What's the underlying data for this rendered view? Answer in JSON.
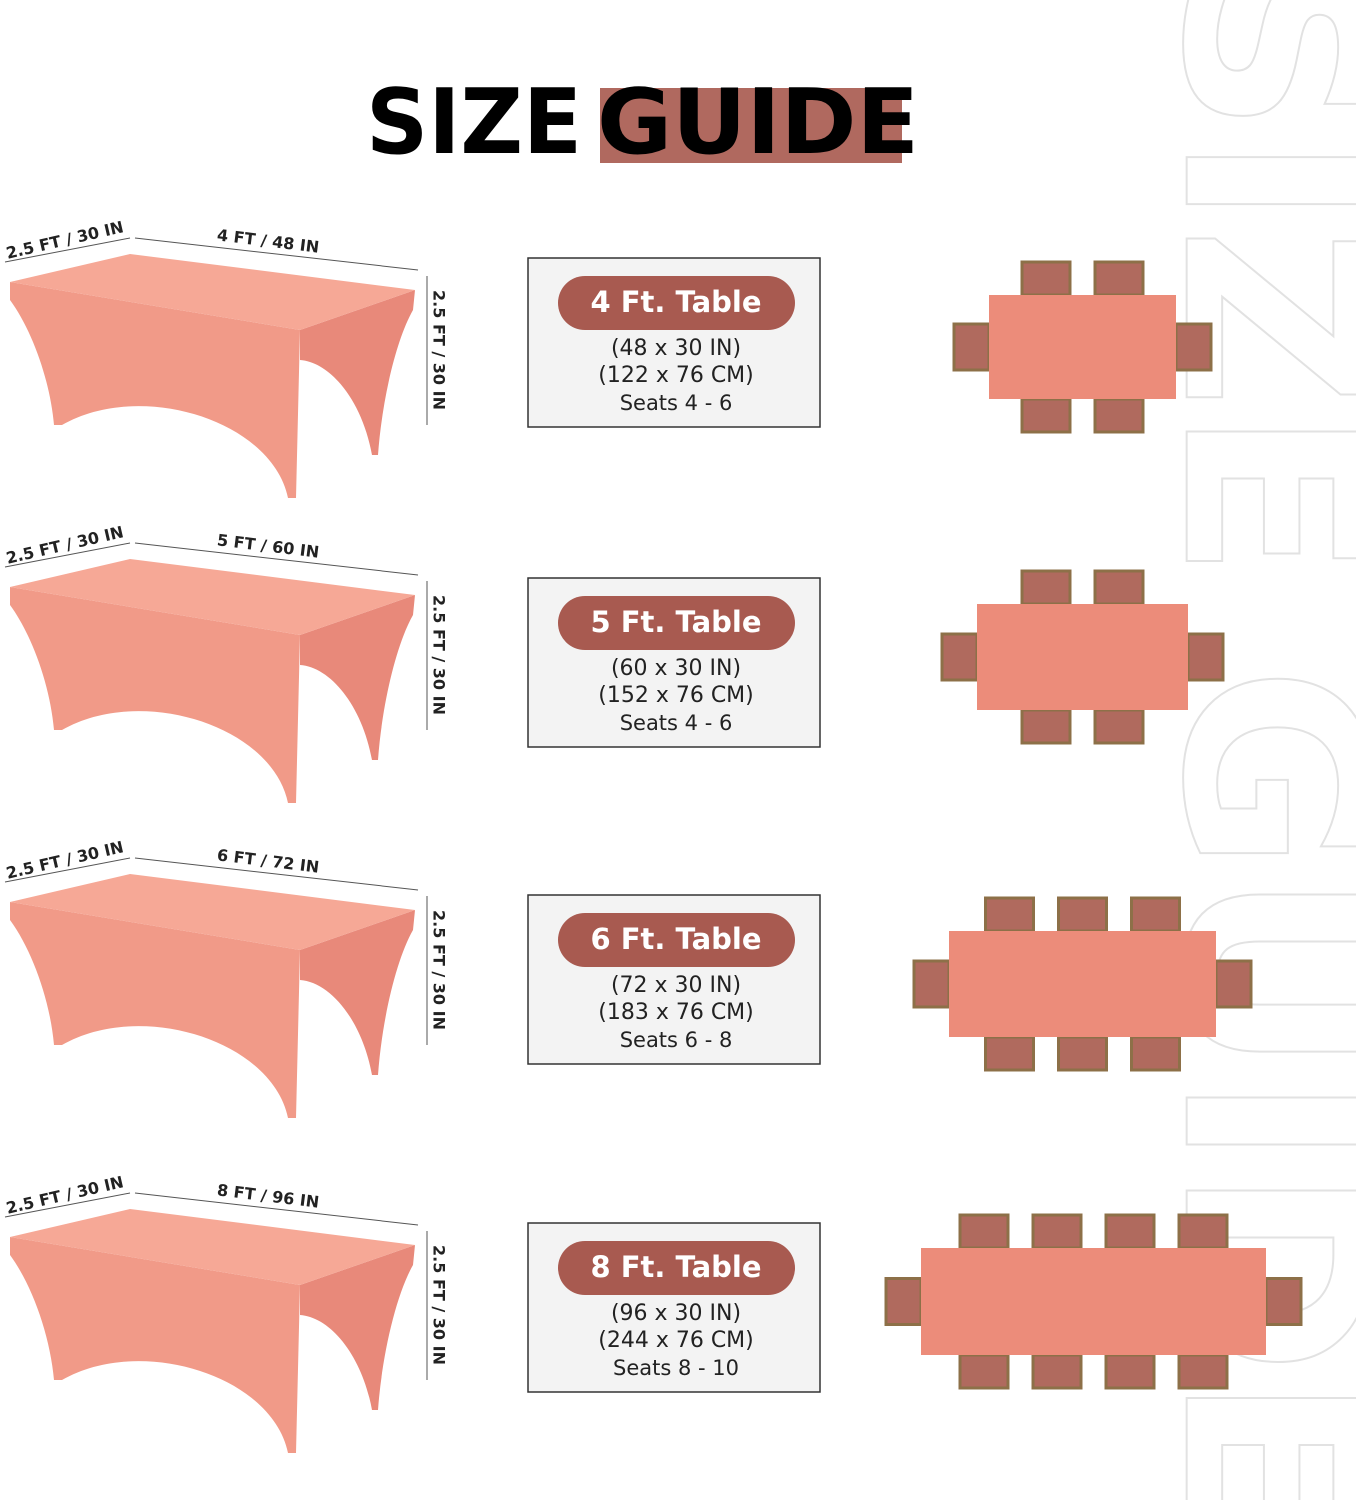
{
  "title": {
    "word1": "SIZE",
    "word2": "GUIDE"
  },
  "watermark": "SIZE GUIDE",
  "tables": [
    {
      "depth": "2.5 FT / 30 IN",
      "width": "4 FT / 48 IN",
      "height": "2.5 FT / 30 IN",
      "name": "4 Ft. Table",
      "inches": "(48 x 30 IN)",
      "cm": "(122 x 76 CM)",
      "seats": "Seats 4 - 6"
    },
    {
      "depth": "2.5 FT / 30 IN",
      "width": "5 FT / 60 IN",
      "height": "2.5 FT / 30 IN",
      "name": "5 Ft. Table",
      "inches": "(60 x 30 IN)",
      "cm": "(152 x 76 CM)",
      "seats": "Seats 4 - 6"
    },
    {
      "depth": "2.5 FT / 30 IN",
      "width": "6 FT / 72 IN",
      "height": "2.5 FT / 30 IN",
      "name": "6 Ft. Table",
      "inches": "(72 x 30 IN)",
      "cm": "(183 x 76 CM)",
      "seats": "Seats 6 - 8"
    },
    {
      "depth": "2.5 FT / 30 IN",
      "width": "8 FT / 96 IN",
      "height": "2.5 FT / 30 IN",
      "name": "8 Ft. Table",
      "inches": "(96 x 30 IN)",
      "cm": "(244 x 76 CM)",
      "seats": "Seats 8 - 10"
    }
  ]
}
